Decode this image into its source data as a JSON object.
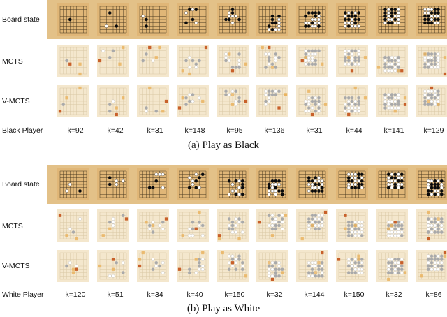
{
  "panels": [
    {
      "rows": [
        {
          "label": "Board state",
          "type": "state"
        },
        {
          "label": "MCTS",
          "type": "heat"
        },
        {
          "label": "V-MCTS",
          "type": "heat"
        }
      ],
      "player_label": "Black Player",
      "k_values": [
        "k=92",
        "k=42",
        "k=31",
        "k=148",
        "k=95",
        "k=136",
        "k=31",
        "k=44",
        "k=141",
        "k=129"
      ],
      "caption": "(a)  Play as Black"
    },
    {
      "rows": [
        {
          "label": "Board state",
          "type": "state"
        },
        {
          "label": "MCTS",
          "type": "heat"
        },
        {
          "label": "V-MCTS",
          "type": "heat"
        }
      ],
      "player_label": "White Player",
      "k_values": [
        "k=120",
        "k=51",
        "k=34",
        "k=40",
        "k=150",
        "k=32",
        "k=144",
        "k=150",
        "k=32",
        "k=86"
      ],
      "caption": "(b)  Play as White"
    }
  ],
  "colors": {
    "board_band": "#e3c188",
    "board_surface": "#e0b677",
    "heat_board": "#f4e7cd",
    "black_stone": "#0a0a0a",
    "white_stone": "#ffffff",
    "gray_stone": "#a9a9a9",
    "hot": "#c8602a",
    "warm": "#eab25b"
  }
}
